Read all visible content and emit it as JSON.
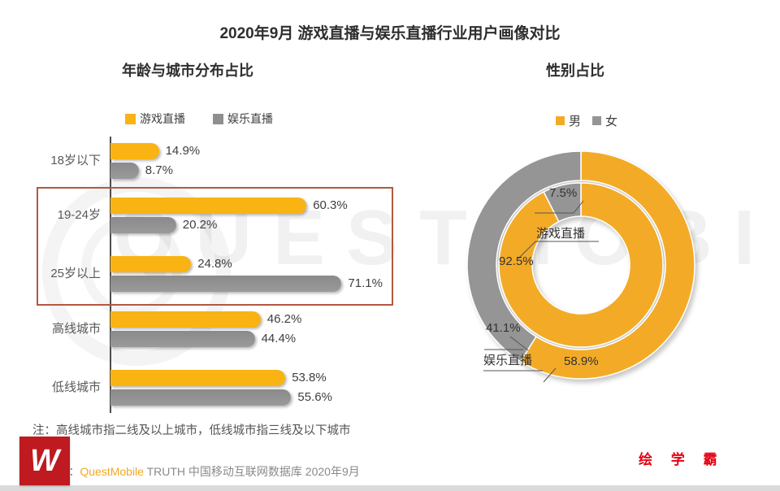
{
  "title": "2020年9月 游戏直播与娱乐直播行业用户画像对比",
  "left_panel": {
    "heading": "年龄与城市分布占比"
  },
  "right_panel": {
    "heading": "性别占比"
  },
  "chart_data": [
    {
      "type": "bar",
      "orientation": "horizontal",
      "title": "年龄与城市分布占比",
      "categories": [
        "18岁以下",
        "19-24岁",
        "25岁以上",
        "高线城市",
        "低线城市"
      ],
      "series": [
        {
          "name": "游戏直播",
          "color": "#F9B313",
          "values": [
            14.9,
            60.3,
            24.8,
            46.2,
            53.8
          ]
        },
        {
          "name": "娱乐直播",
          "color": "#8F8F8F",
          "values": [
            8.7,
            20.2,
            71.1,
            44.4,
            55.6
          ]
        }
      ],
      "value_suffix": "%",
      "xlim": [
        0,
        75
      ],
      "grid": false,
      "legend_position": "top",
      "highlighted_categories": [
        "19-24岁",
        "25岁以上"
      ]
    },
    {
      "type": "pie",
      "subtype": "double-donut",
      "title": "性别占比",
      "legend": [
        "男",
        "女"
      ],
      "legend_position": "top",
      "rings": [
        {
          "name": "游戏直播",
          "position": "inner",
          "male": 92.5,
          "female": 7.5
        },
        {
          "name": "娱乐直播",
          "position": "outer",
          "male": 58.9,
          "female": 41.1
        }
      ],
      "callouts": {
        "inner_female": "7.5%",
        "inner_name": "游戏直播",
        "inner_male": "92.5%",
        "outer_female": "41.1%",
        "outer_name": "娱乐直播",
        "outer_male": "58.9%"
      }
    }
  ],
  "note": "注：高线城市指二线及以上城市，低线城市指三线及以下城市",
  "source": {
    "prefix": "Source：",
    "brand": "QuestMobile",
    "rest": " TRUTH 中国移动互联网数据库 2020年9月"
  },
  "watermark": "QUESTMOBILE",
  "branding": {
    "logo_glyph": "W",
    "brand_name": "绘 学 霸"
  },
  "colors": {
    "yellow": "#F9B313",
    "gray": "#8F8F8F",
    "donut_yellow": "#F3AB27",
    "donut_gray": "#959595",
    "highlight_box": "#B2593F",
    "brand_red": "#E60012",
    "logo_red": "#BE1A20",
    "quest_orange": "#F5A623"
  }
}
